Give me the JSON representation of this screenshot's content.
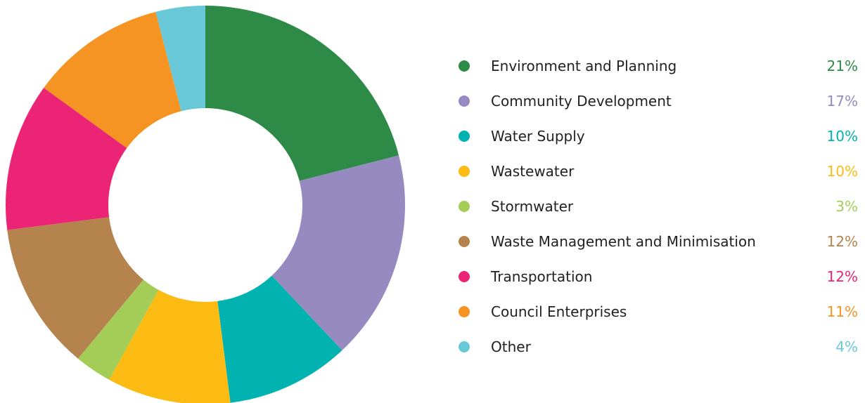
{
  "chart_data": {
    "type": "pie",
    "donut": true,
    "title": "",
    "legend_position": "right",
    "categories": [
      "Environment and Planning",
      "Community Development",
      "Water Supply",
      "Wastewater",
      "Stormwater",
      "Waste Management and Minimisation",
      "Transportation",
      "Council Enterprises",
      "Other"
    ],
    "values": [
      21,
      17,
      10,
      10,
      3,
      12,
      12,
      11,
      4
    ],
    "value_labels": [
      "21%",
      "17%",
      "10%",
      "10%",
      "3%",
      "12%",
      "12%",
      "11%",
      "4%"
    ],
    "colors": [
      "#2e8b47",
      "#978ac1",
      "#00b2b0",
      "#fbbb12",
      "#a3cd57",
      "#b5834d",
      "#ec2475",
      "#f59422",
      "#69c8d8"
    ]
  }
}
